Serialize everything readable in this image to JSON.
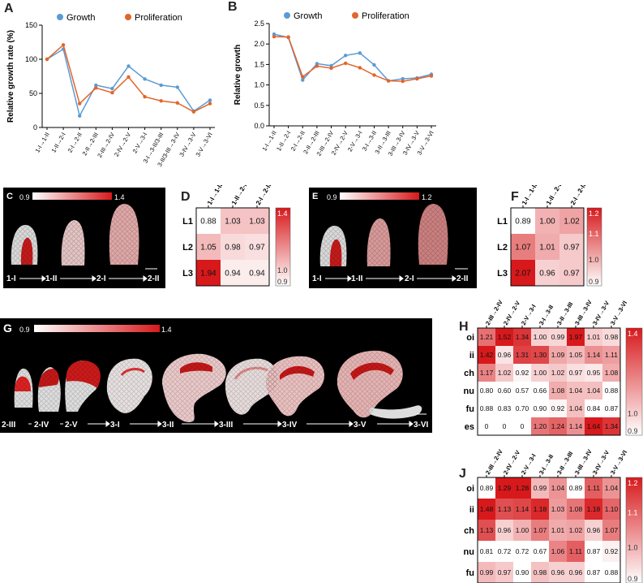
{
  "panels": {
    "A": "A",
    "B": "B",
    "C": "C",
    "D": "D",
    "E": "E",
    "F": "F",
    "G": "G",
    "H": "H",
    "J": "J"
  },
  "colors": {
    "growth": "#5b9bd5",
    "proliferation": "#e2652b",
    "heat_high": "#d7191c",
    "heat_low": "#ffffff"
  },
  "chart_data": [
    {
      "id": "A",
      "type": "line",
      "ylabel": "Relative growth rate (%)",
      "ylim": [
        0,
        150
      ],
      "yticks": [
        0,
        50,
        100,
        150
      ],
      "categories": [
        "1-I→1-II",
        "1-II→2-I",
        "2-I→2-II",
        "2-II→2-III",
        "2-III→2-IV",
        "2-IV→2-V",
        "2-V→3-I",
        "3-I→3-II/3-III",
        "3-II/3-III→3-IV",
        "3-IV→3-V",
        "3-V→3-VI"
      ],
      "series": [
        {
          "name": "Growth",
          "values": [
            100,
            115,
            17,
            62,
            57,
            90,
            71,
            62,
            59,
            24,
            40
          ]
        },
        {
          "name": "Proliferation",
          "values": [
            100,
            121,
            35,
            58,
            51,
            74,
            45,
            39,
            36,
            23,
            35
          ]
        }
      ]
    },
    {
      "id": "B",
      "type": "line",
      "ylabel": "Relative growth",
      "ylim": [
        0,
        2.5
      ],
      "yticks": [
        0.0,
        0.5,
        1.0,
        1.5,
        2.0,
        2.5
      ],
      "categories": [
        "1-I→1-II",
        "1-II→2-I",
        "2-I→2-II",
        "2-II→2-III",
        "2-III→2-IV",
        "2-IV→2-V",
        "2-V→3-I",
        "3-I→3-II",
        "3-II→3-III",
        "3-III→3-IV",
        "3-IV→3-V",
        "3-V→3-VI"
      ],
      "series": [
        {
          "name": "Growth",
          "values": [
            2.24,
            2.16,
            1.12,
            1.52,
            1.47,
            1.72,
            1.78,
            1.49,
            1.1,
            1.15,
            1.17,
            1.26
          ]
        },
        {
          "name": "Proliferation",
          "values": [
            2.18,
            2.17,
            1.2,
            1.46,
            1.41,
            1.53,
            1.42,
            1.24,
            1.1,
            1.09,
            1.15,
            1.22
          ]
        }
      ]
    },
    {
      "id": "D",
      "type": "heatmap",
      "cols": [
        "1-I→1-II",
        "1-II→2-I",
        "2-I→2-II"
      ],
      "rows": [
        "L1",
        "L2",
        "L3"
      ],
      "values": [
        [
          0.88,
          1.03,
          1.03
        ],
        [
          1.05,
          0.98,
          0.97
        ],
        [
          1.94,
          0.94,
          0.94
        ]
      ],
      "scale": {
        "min": 0.9,
        "max": 1.4,
        "top": "1.4",
        "mid": "1.0",
        "bottom": "0.9"
      }
    },
    {
      "id": "F",
      "type": "heatmap",
      "cols": [
        "1-I→1-II",
        "1-II→2-I",
        "2-I→2-II"
      ],
      "rows": [
        "L1",
        "L2",
        "L3"
      ],
      "values": [
        [
          0.89,
          1.0,
          1.02
        ],
        [
          1.07,
          1.01,
          0.97
        ],
        [
          2.07,
          0.96,
          0.97
        ]
      ],
      "scale": {
        "min": 0.9,
        "max": 1.2,
        "top": "1.2",
        "upper": "1.1",
        "mid": "1.0",
        "bottom": "0.9"
      }
    },
    {
      "id": "H",
      "type": "heatmap",
      "cols": [
        "2-III→2-IV",
        "2-IV→2-V",
        "2-V→3-I",
        "3-I→3-II",
        "3-II→3-III",
        "3-III→3-IV",
        "3-IV→3-V",
        "3-V→3-VI"
      ],
      "rows": [
        "oi",
        "ii",
        "ch",
        "nu",
        "fu",
        "es"
      ],
      "values": [
        [
          1.21,
          1.52,
          1.34,
          1.0,
          0.99,
          1.97,
          1.01,
          0.98
        ],
        [
          1.42,
          0.96,
          1.31,
          1.3,
          1.09,
          1.05,
          1.14,
          1.11
        ],
        [
          1.17,
          1.02,
          0.92,
          1.0,
          1.02,
          0.97,
          0.95,
          1.08
        ],
        [
          0.8,
          0.6,
          0.57,
          0.66,
          1.08,
          1.04,
          1.04,
          0.88
        ],
        [
          0.88,
          0.83,
          0.7,
          0.9,
          0.92,
          1.04,
          0.84,
          0.87
        ],
        [
          0,
          0,
          0,
          1.2,
          1.24,
          1.14,
          1.64,
          1.34
        ]
      ],
      "display": [
        [
          "1.21",
          "1.52",
          "1.34",
          "1.00",
          "0.99",
          "1.97",
          "1.01",
          "0.98"
        ],
        [
          "1.42",
          "0.96",
          "1.31",
          "1.30",
          "1.09",
          "1.05",
          "1.14",
          "1.11"
        ],
        [
          "1.17",
          "1.02",
          "0.92",
          "1.00",
          "1.02",
          "0.97",
          "0.95",
          "1.08"
        ],
        [
          "0.80",
          "0.60",
          "0.57",
          "0.66",
          "1.08",
          "1.04",
          "1.04",
          "0.88"
        ],
        [
          "0.88",
          "0.83",
          "0.70",
          "0.90",
          "0.92",
          "1.04",
          "0.84",
          "0.87"
        ],
        [
          "0",
          "0",
          "0",
          "1.20",
          "1.24",
          "1.14",
          "1.64",
          "1.34"
        ]
      ],
      "scale": {
        "min": 0.9,
        "max": 1.4,
        "top": "1.4",
        "mid": "1.0",
        "bottom": "0.9"
      }
    },
    {
      "id": "J",
      "type": "heatmap",
      "cols": [
        "2-III→2-IV",
        "2-IV→2-V",
        "2-V→3-I",
        "3-I→3-II",
        "3-II→3-III",
        "3-III→3-IV",
        "3-IV→3-V",
        "3-V→3-VI"
      ],
      "rows": [
        "oi",
        "ii",
        "ch",
        "nu",
        "fu"
      ],
      "values": [
        [
          0.89,
          1.29,
          1.28,
          0.99,
          1.04,
          0.89,
          1.11,
          1.04
        ],
        [
          1.48,
          1.13,
          1.14,
          1.18,
          1.03,
          1.08,
          1.18,
          1.1
        ],
        [
          1.13,
          0.96,
          1.0,
          1.07,
          1.01,
          1.02,
          0.96,
          1.07
        ],
        [
          0.81,
          0.72,
          0.72,
          0.67,
          1.06,
          1.11,
          0.87,
          0.92
        ],
        [
          0.99,
          0.97,
          0.9,
          0.98,
          0.96,
          0.96,
          0.87,
          0.88
        ]
      ],
      "display": [
        [
          "0.89",
          "1.29",
          "1.28",
          "0.99",
          "1.04",
          "0.89",
          "1.11",
          "1.04"
        ],
        [
          "1.48",
          "1.13",
          "1.14",
          "1.18",
          "1.03",
          "1.08",
          "1.18",
          "1.10"
        ],
        [
          "1.13",
          "0.96",
          "1.00",
          "1.07",
          "1.01",
          "1.02",
          "0.96",
          "1.07"
        ],
        [
          "0.81",
          "0.72",
          "0.72",
          "0.67",
          "1.06",
          "1.11",
          "0.87",
          "0.92"
        ],
        [
          "0.99",
          "0.97",
          "0.90",
          "0.98",
          "0.96",
          "0.96",
          "0.87",
          "0.88"
        ]
      ],
      "scale": {
        "min": 0.9,
        "max": 1.2,
        "top": "1.2",
        "upper": "1.1",
        "mid": "1.0",
        "bottom": "0.9"
      }
    }
  ],
  "legend": {
    "growth": "Growth",
    "proliferation": "Proliferation"
  },
  "panelC": {
    "bar_min": "0.9",
    "bar_max": "1.4",
    "stages": [
      "1-I",
      "1-II",
      "2-I",
      "2-II"
    ]
  },
  "panelE": {
    "bar_min": "0.9",
    "bar_max": "1.2",
    "stages": [
      "1-I",
      "1-II",
      "2-I",
      "2-II"
    ]
  },
  "panelG": {
    "bar_min": "0.9",
    "bar_max": "1.4",
    "stages": [
      "2-III",
      "2-IV",
      "2-V",
      "3-I",
      "3-II",
      "3-III",
      "3-IV",
      "3-V",
      "3-VI"
    ]
  }
}
